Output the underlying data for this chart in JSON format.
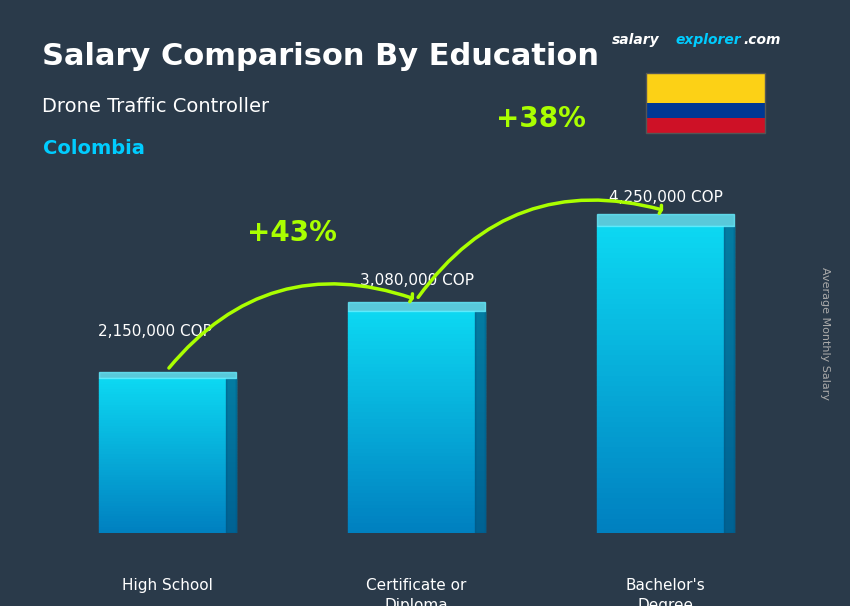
{
  "title_main": "Salary Comparison By Education",
  "title_sub": "Drone Traffic Controller",
  "title_country": "Colombia",
  "ylabel": "Average Monthly Salary",
  "categories": [
    "High School",
    "Certificate or\nDiploma",
    "Bachelor's\nDegree"
  ],
  "values": [
    2150000,
    3080000,
    4250000
  ],
  "value_labels": [
    "2,150,000 COP",
    "3,080,000 COP",
    "4,250,000 COP"
  ],
  "pct_labels": [
    "+43%",
    "+38%"
  ],
  "bar_color_top": "#00d4ff",
  "bar_color_bottom": "#0077b6",
  "bg_color": "#2a3a4a",
  "title_color": "#ffffff",
  "subtitle_color": "#ffffff",
  "country_color": "#00ccff",
  "value_label_color": "#ffffff",
  "pct_color": "#aaff00",
  "arrow_color": "#aaff00",
  "salary_label_color": "#cccccc",
  "website_salary": "salary",
  "website_explorer": "explorer",
  "website_com": ".com",
  "flag_colors": [
    "#FCD116",
    "#003893",
    "#CE1126"
  ],
  "ylim": [
    0,
    5200000
  ]
}
